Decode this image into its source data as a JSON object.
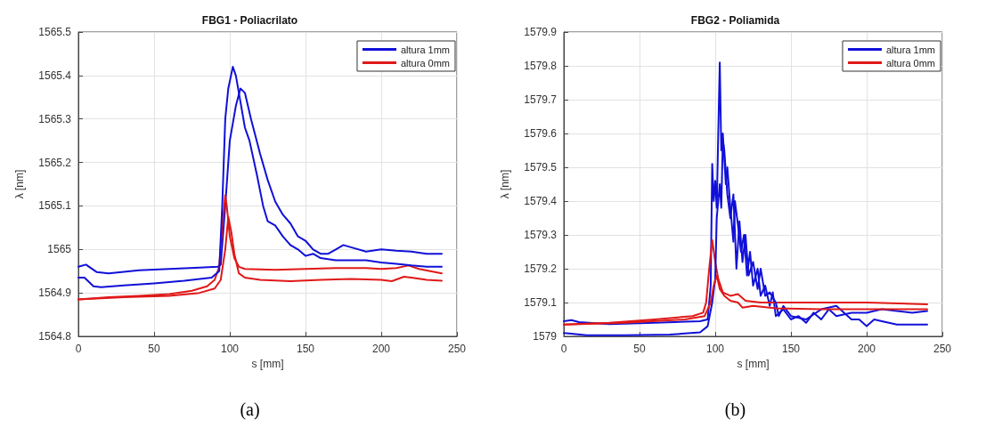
{
  "chart_data": [
    {
      "type": "line",
      "title": "FBG1 - Poliacrilato",
      "xlabel": "s [mm]",
      "ylabel": "λ [nm]",
      "annotations": [
        "(a)"
      ],
      "xlim": [
        0,
        250
      ],
      "xticks": [
        0,
        50,
        100,
        150,
        200,
        250
      ],
      "ylim": [
        1564.8,
        1565.5
      ],
      "yticks": [
        1564.8,
        1564.9,
        1565,
        1565.1,
        1565.2,
        1565.3,
        1565.4,
        1565.5
      ],
      "grid": true,
      "legend": "top right",
      "marker": "none",
      "line_style": "solid",
      "series": [
        {
          "name": "altura 1mm",
          "color": "#1010d8",
          "x": [
            0,
            5,
            12,
            20,
            40,
            60,
            80,
            92,
            94,
            97,
            100,
            104,
            107,
            110,
            114,
            120,
            125,
            130,
            135,
            140,
            145,
            150,
            155,
            160,
            165,
            170,
            175,
            180,
            190,
            200,
            210,
            220,
            230,
            240
          ],
          "values": [
            1564.96,
            1564.965,
            1564.948,
            1564.945,
            1564.952,
            1564.955,
            1564.958,
            1564.96,
            1564.965,
            1565.1,
            1565.25,
            1565.33,
            1565.37,
            1565.36,
            1565.3,
            1565.22,
            1565.16,
            1565.11,
            1565.08,
            1565.06,
            1565.03,
            1565.02,
            1565.0,
            1564.99,
            1564.99,
            1565.0,
            1565.01,
            1565.005,
            1564.995,
            1565.0,
            1564.997,
            1564.995,
            1564.99,
            1564.99
          ]
        },
        {
          "name": "altura 0mm",
          "color": "#e01818",
          "x": [
            0,
            20,
            40,
            60,
            75,
            85,
            90,
            93,
            95,
            97,
            98,
            100,
            103,
            106,
            110,
            130,
            150,
            170,
            190,
            200,
            210,
            218,
            225,
            240
          ],
          "values": [
            1564.885,
            1564.89,
            1564.893,
            1564.897,
            1564.905,
            1564.915,
            1564.93,
            1564.96,
            1565.05,
            1565.125,
            1565.1,
            1565.03,
            1564.98,
            1564.96,
            1564.955,
            1564.953,
            1564.955,
            1564.957,
            1564.957,
            1564.955,
            1564.957,
            1564.963,
            1564.955,
            1564.945
          ]
        },
        {
          "color": "#1010d8",
          "x": [
            0,
            4,
            10,
            15,
            30,
            50,
            70,
            88,
            93,
            95,
            97,
            99,
            102,
            104,
            107,
            110,
            113,
            118,
            122,
            125,
            130,
            135,
            140,
            145,
            150,
            155,
            160,
            170,
            180,
            190,
            200,
            210,
            220,
            230,
            240
          ],
          "values": [
            1564.935,
            1564.935,
            1564.915,
            1564.913,
            1564.917,
            1564.922,
            1564.928,
            1564.935,
            1564.95,
            1565.1,
            1565.3,
            1565.37,
            1565.42,
            1565.4,
            1565.34,
            1565.28,
            1565.25,
            1565.17,
            1565.1,
            1565.065,
            1565.055,
            1565.03,
            1565.01,
            1565.0,
            1564.985,
            1564.99,
            1564.98,
            1564.975,
            1564.975,
            1564.975,
            1564.97,
            1564.967,
            1564.963,
            1564.96,
            1564.96
          ]
        },
        {
          "color": "#e01818",
          "x": [
            0,
            30,
            60,
            80,
            90,
            94,
            97,
            99,
            101,
            103,
            106,
            110,
            120,
            140,
            160,
            180,
            200,
            207,
            215,
            220,
            230,
            240
          ],
          "values": [
            1564.885,
            1564.89,
            1564.893,
            1564.9,
            1564.91,
            1564.93,
            1565.0,
            1565.075,
            1565.04,
            1564.99,
            1564.945,
            1564.935,
            1564.93,
            1564.927,
            1564.93,
            1564.932,
            1564.93,
            1564.927,
            1564.937,
            1564.935,
            1564.93,
            1564.928
          ]
        }
      ]
    },
    {
      "type": "line",
      "title": "FBG2 - Poliamida",
      "xlabel": "s [mm]",
      "ylabel": "λ [nm]",
      "annotations": [
        "(b)"
      ],
      "xlim": [
        0,
        250
      ],
      "xticks": [
        0,
        50,
        100,
        150,
        200,
        250
      ],
      "ylim": [
        1579,
        1579.9
      ],
      "yticks": [
        1579,
        1579.1,
        1579.2,
        1579.3,
        1579.4,
        1579.5,
        1579.6,
        1579.7,
        1579.8,
        1579.9
      ],
      "grid": true,
      "legend": "top right",
      "marker": "none",
      "line_style": "solid",
      "series": [
        {
          "name": "altura 1mm",
          "color": "#1010d8",
          "x": [
            0,
            5,
            10,
            30,
            60,
            90,
            95,
            97,
            98,
            99,
            100,
            101,
            102,
            103,
            104,
            105,
            107,
            108,
            110,
            112,
            113,
            115,
            117,
            119,
            121,
            123,
            125,
            128,
            130,
            133,
            136,
            138,
            140,
            145,
            150,
            155,
            160,
            165,
            170,
            175,
            180,
            190,
            200,
            210,
            220,
            230,
            240
          ],
          "values": [
            1579.045,
            1579.048,
            1579.042,
            1579.036,
            1579.04,
            1579.045,
            1579.05,
            1579.15,
            1579.51,
            1579.4,
            1579.46,
            1579.38,
            1579.6,
            1579.81,
            1579.55,
            1579.6,
            1579.45,
            1579.5,
            1579.38,
            1579.28,
            1579.4,
            1579.33,
            1579.25,
            1579.3,
            1579.18,
            1579.25,
            1579.15,
            1579.2,
            1579.12,
            1579.15,
            1579.09,
            1579.13,
            1579.06,
            1579.08,
            1579.05,
            1579.06,
            1579.04,
            1579.07,
            1579.05,
            1579.08,
            1579.06,
            1579.07,
            1579.07,
            1579.08,
            1579.075,
            1579.07,
            1579.075
          ]
        },
        {
          "name": "altura 0mm",
          "color": "#e01818",
          "x": [
            0,
            30,
            60,
            85,
            92,
            94,
            96,
            98,
            100,
            102,
            105,
            110,
            115,
            120,
            130,
            150,
            200,
            240
          ],
          "values": [
            1579.035,
            1579.04,
            1579.05,
            1579.06,
            1579.07,
            1579.1,
            1579.2,
            1579.285,
            1579.22,
            1579.17,
            1579.13,
            1579.12,
            1579.125,
            1579.105,
            1579.1,
            1579.1,
            1579.1,
            1579.095
          ]
        },
        {
          "color": "#1010d8",
          "x": [
            0,
            5,
            15,
            40,
            70,
            90,
            95,
            98,
            100,
            101,
            103,
            104,
            105,
            106,
            108,
            110,
            112,
            114,
            116,
            118,
            120,
            122,
            125,
            128,
            130,
            133,
            136,
            140,
            142,
            145,
            150,
            160,
            170,
            180,
            190,
            195,
            200,
            205,
            210,
            220,
            230,
            240
          ],
          "values": [
            1579.01,
            1579.008,
            1579.003,
            1579.003,
            1579.005,
            1579.012,
            1579.03,
            1579.1,
            1579.17,
            1579.35,
            1579.45,
            1579.38,
            1579.58,
            1579.55,
            1579.42,
            1579.35,
            1579.42,
            1579.2,
            1579.34,
            1579.22,
            1579.3,
            1579.18,
            1579.22,
            1579.14,
            1579.2,
            1579.12,
            1579.13,
            1579.1,
            1579.06,
            1579.09,
            1579.06,
            1579.05,
            1579.08,
            1579.09,
            1579.05,
            1579.05,
            1579.03,
            1579.05,
            1579.045,
            1579.035,
            1579.035,
            1579.035
          ]
        },
        {
          "color": "#e01818",
          "x": [
            0,
            40,
            80,
            93,
            97,
            99,
            101,
            103,
            106,
            110,
            115,
            118,
            125,
            140,
            170,
            200,
            240
          ],
          "values": [
            1579.035,
            1579.04,
            1579.05,
            1579.06,
            1579.1,
            1579.15,
            1579.18,
            1579.14,
            1579.12,
            1579.105,
            1579.1,
            1579.085,
            1579.09,
            1579.083,
            1579.08,
            1579.08,
            1579.08
          ]
        }
      ]
    }
  ]
}
